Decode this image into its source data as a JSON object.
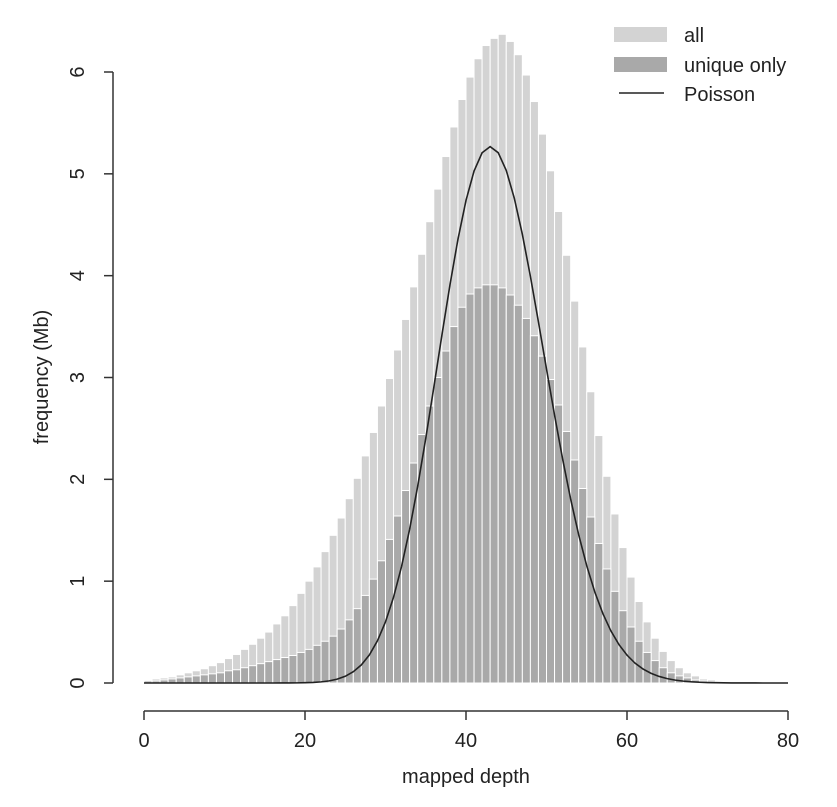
{
  "chart_data": {
    "type": "bar",
    "title": "",
    "xlabel": "mapped depth",
    "ylabel": "frequency (Mb)",
    "xlim": [
      0,
      80
    ],
    "ylim": [
      0,
      6.3
    ],
    "x_ticks": [
      "0",
      "20",
      "40",
      "60",
      "80"
    ],
    "y_ticks": [
      "0",
      "1",
      "2",
      "3",
      "4",
      "5",
      "6"
    ],
    "grid": false,
    "legend_position": "top-right",
    "x": [
      0,
      1,
      2,
      3,
      4,
      5,
      6,
      7,
      8,
      9,
      10,
      11,
      12,
      13,
      14,
      15,
      16,
      17,
      18,
      19,
      20,
      21,
      22,
      23,
      24,
      25,
      26,
      27,
      28,
      29,
      30,
      31,
      32,
      33,
      34,
      35,
      36,
      37,
      38,
      39,
      40,
      41,
      42,
      43,
      44,
      45,
      46,
      47,
      48,
      49,
      50,
      51,
      52,
      53,
      54,
      55,
      56,
      57,
      58,
      59,
      60,
      61,
      62,
      63,
      64,
      65,
      66,
      67,
      68,
      69,
      70,
      71,
      72,
      73,
      74,
      75,
      76,
      77,
      78,
      79
    ],
    "series": [
      {
        "name": "all",
        "style": "bar",
        "color": "#d3d3d3",
        "values": [
          0.03,
          0.04,
          0.05,
          0.06,
          0.08,
          0.1,
          0.12,
          0.14,
          0.17,
          0.2,
          0.24,
          0.28,
          0.33,
          0.38,
          0.44,
          0.5,
          0.58,
          0.66,
          0.76,
          0.88,
          1.0,
          1.14,
          1.29,
          1.45,
          1.62,
          1.81,
          2.01,
          2.23,
          2.46,
          2.72,
          2.99,
          3.27,
          3.57,
          3.89,
          4.21,
          4.53,
          4.85,
          5.17,
          5.46,
          5.73,
          5.95,
          6.13,
          6.26,
          6.33,
          6.37,
          6.3,
          6.17,
          5.97,
          5.71,
          5.39,
          5.03,
          4.63,
          4.2,
          3.75,
          3.3,
          2.86,
          2.43,
          2.03,
          1.66,
          1.33,
          1.04,
          0.8,
          0.6,
          0.44,
          0.31,
          0.22,
          0.15,
          0.1,
          0.07,
          0.04,
          0.03,
          0.02,
          0.01,
          0.01,
          0.005,
          0.003,
          0.002,
          0.001,
          0.001,
          0.0
        ]
      },
      {
        "name": "unique only",
        "style": "bar",
        "color": "#a9a9a9",
        "values": [
          0.02,
          0.02,
          0.03,
          0.04,
          0.05,
          0.06,
          0.07,
          0.08,
          0.09,
          0.1,
          0.12,
          0.13,
          0.15,
          0.17,
          0.19,
          0.21,
          0.23,
          0.25,
          0.27,
          0.3,
          0.33,
          0.37,
          0.41,
          0.46,
          0.53,
          0.62,
          0.73,
          0.86,
          1.02,
          1.2,
          1.41,
          1.64,
          1.89,
          2.16,
          2.44,
          2.72,
          3.0,
          3.26,
          3.5,
          3.69,
          3.82,
          3.88,
          3.91,
          3.91,
          3.88,
          3.81,
          3.71,
          3.58,
          3.41,
          3.21,
          2.98,
          2.73,
          2.47,
          2.19,
          1.91,
          1.63,
          1.37,
          1.12,
          0.9,
          0.71,
          0.55,
          0.41,
          0.3,
          0.22,
          0.15,
          0.1,
          0.07,
          0.05,
          0.03,
          0.02,
          0.01,
          0.01,
          0.005,
          0.003,
          0.002,
          0.001,
          0.001,
          0.0,
          0.0,
          0.0
        ]
      },
      {
        "name": "Poisson",
        "style": "line",
        "color": "#222222",
        "lambda": 43.5,
        "total_mb": 87
      }
    ]
  }
}
